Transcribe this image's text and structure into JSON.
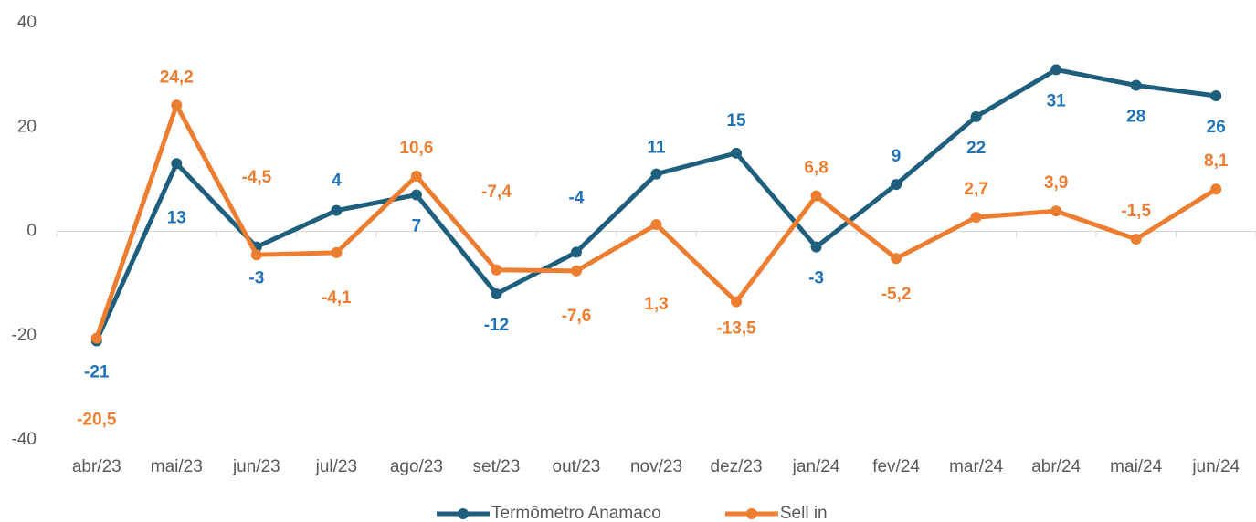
{
  "chart_data": {
    "type": "line",
    "categories": [
      "abr/23",
      "mai/23",
      "jun/23",
      "jul/23",
      "ago/23",
      "set/23",
      "out/23",
      "nov/23",
      "dez/23",
      "jan/24",
      "fev/24",
      "mar/24",
      "abr/24",
      "mai/24",
      "jun/24"
    ],
    "series": [
      {
        "name": "Termômetro Anamaco",
        "color": "#1f5f7e",
        "label_color": "#1f72b8",
        "values": [
          -21,
          13,
          -3,
          4,
          7,
          -12,
          -4,
          11,
          15,
          -3,
          9,
          22,
          31,
          28,
          26
        ]
      },
      {
        "name": "Sell in",
        "color": "#ed7d31",
        "label_color": "#ed7d31",
        "values": [
          -20.5,
          24.2,
          -4.5,
          -4.1,
          10.6,
          -7.4,
          -7.6,
          1.3,
          -13.5,
          6.8,
          -5.2,
          2.7,
          3.9,
          -1.5,
          8.1
        ],
        "value_labels": [
          "-20,5",
          "24,2",
          "-4,5",
          "-4,1",
          "10,6",
          "-7,4",
          "-7,6",
          "1,3",
          "-13,5",
          "6,8",
          "-5,2",
          "2,7",
          "3,9",
          "-1,5",
          "8,1"
        ]
      }
    ],
    "ylim": [
      -40,
      40
    ],
    "yticks": [
      -40,
      -20,
      0,
      20,
      40
    ],
    "grid": false,
    "legend": "bottom"
  }
}
